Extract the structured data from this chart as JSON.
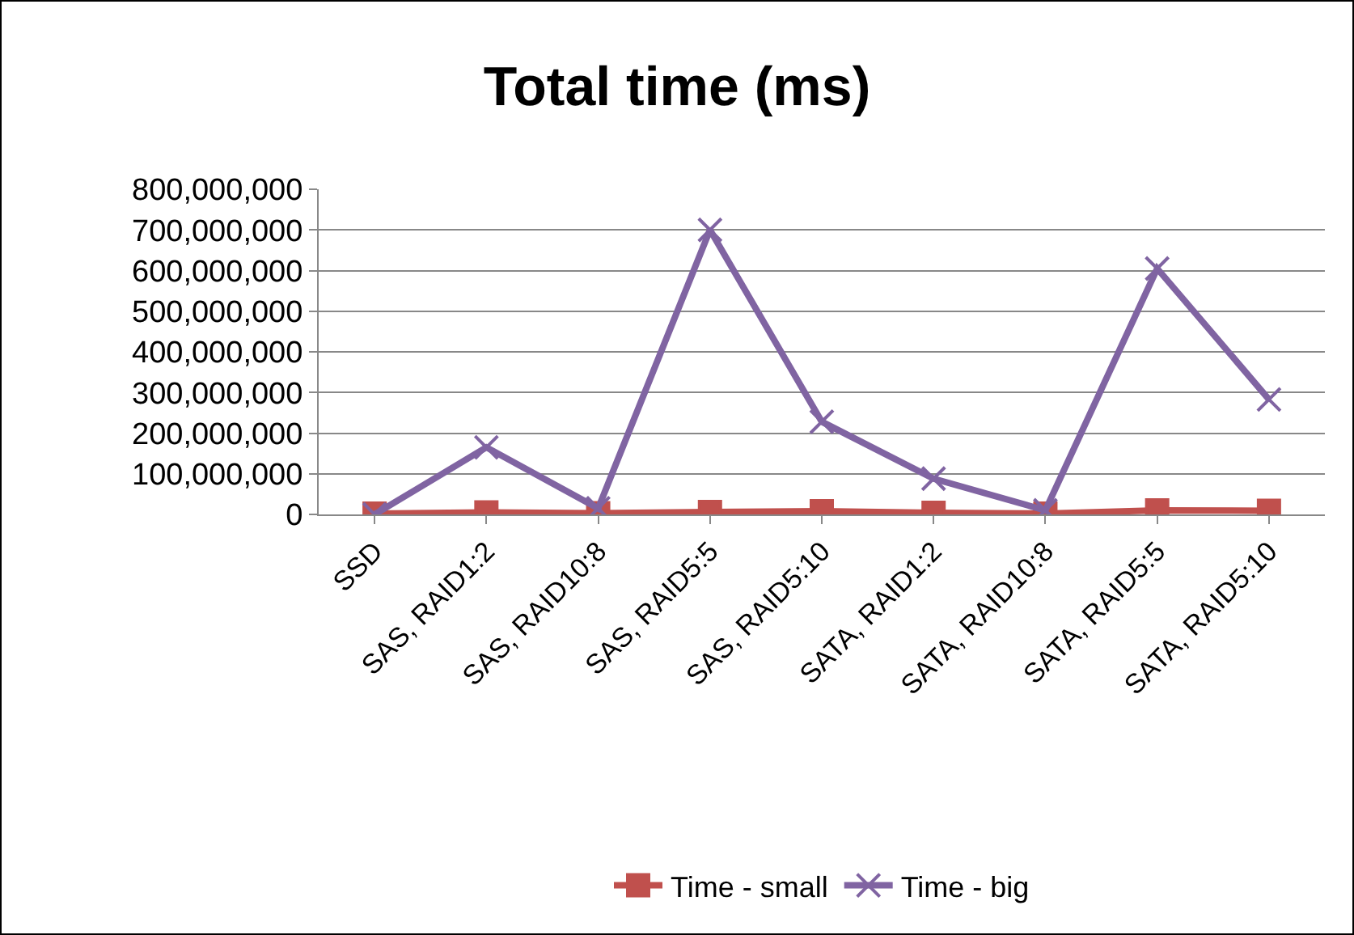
{
  "chart_data": {
    "type": "line",
    "title": "Total time (ms)",
    "categories": [
      "SSD",
      "SAS, RAID1:2",
      "SAS, RAID10:8",
      "SAS, RAID5:5",
      "SAS, RAID5:10",
      "SATA, RAID1:2",
      "SATA, RAID10:8",
      "SATA, RAID5:5",
      "SATA, RAID5:10"
    ],
    "series": [
      {
        "name": "Time - small",
        "color": "#c0504d",
        "marker": "square",
        "values": [
          2000000,
          5000000,
          3000000,
          6000000,
          8000000,
          4000000,
          2000000,
          10000000,
          9000000
        ]
      },
      {
        "name": "Time - big",
        "color": "#8064a2",
        "marker": "cross",
        "values": [
          0,
          165000000,
          15000000,
          700000000,
          228000000,
          88000000,
          10000000,
          605000000,
          283000000
        ]
      }
    ],
    "ylim": [
      0,
      800000000
    ],
    "yticks": [
      {
        "value": 0,
        "label": "0"
      },
      {
        "value": 100000000,
        "label": "100,000,000"
      },
      {
        "value": 200000000,
        "label": "200,000,000"
      },
      {
        "value": 300000000,
        "label": "300,000,000"
      },
      {
        "value": 400000000,
        "label": "400,000,000"
      },
      {
        "value": 500000000,
        "label": "500,000,000"
      },
      {
        "value": 600000000,
        "label": "600,000,000"
      },
      {
        "value": 700000000,
        "label": "700,000,000"
      },
      {
        "value": 800000000,
        "label": "800,000,000"
      }
    ],
    "grid": "y",
    "legend": "bottom"
  }
}
